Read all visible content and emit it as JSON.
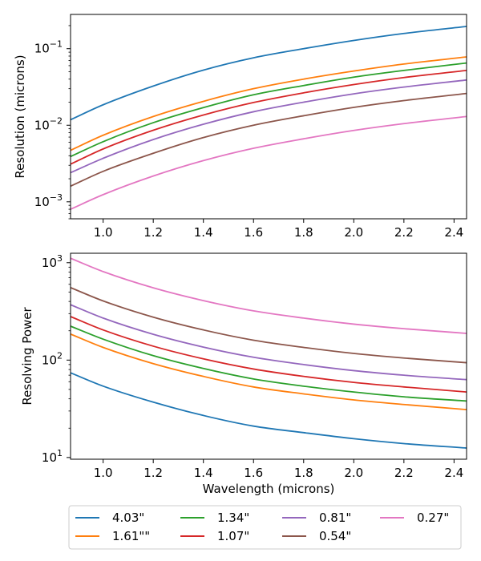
{
  "chart_data": [
    {
      "type": "line",
      "yscale": "log",
      "title": "",
      "xlabel": "",
      "ylabel": "Resolution (microns)",
      "xlim": [
        0.87,
        2.45
      ],
      "ylim": [
        0.0006,
        0.28
      ],
      "x": [
        0.87,
        1.0,
        1.2,
        1.4,
        1.6,
        1.8,
        2.0,
        2.2,
        2.45
      ],
      "xticks": [
        1.0,
        1.2,
        1.4,
        1.6,
        1.8,
        2.0,
        2.2,
        2.4
      ],
      "xtick_labels": [
        "1.0",
        "1.2",
        "1.4",
        "1.6",
        "1.8",
        "2.0",
        "2.2",
        "2.4"
      ],
      "yticks": [
        0.001,
        0.01,
        0.1
      ],
      "ytick_labels": [
        {
          "base": "10",
          "exp": "−3"
        },
        {
          "base": "10",
          "exp": "−2"
        },
        {
          "base": "10",
          "exp": "−1"
        }
      ],
      "series": [
        {
          "name": "4.03\"",
          "color": "#1f77b4",
          "values": [
            0.0118,
            0.0185,
            0.0325,
            0.0525,
            0.076,
            0.1,
            0.128,
            0.158,
            0.195
          ]
        },
        {
          "name": "1.61\"\"",
          "color": "#ff7f0e",
          "values": [
            0.0047,
            0.0074,
            0.013,
            0.0205,
            0.03,
            0.04,
            0.051,
            0.063,
            0.078
          ]
        },
        {
          "name": "1.34\"",
          "color": "#2ca02c",
          "values": [
            0.0039,
            0.0061,
            0.0108,
            0.017,
            0.025,
            0.033,
            0.0425,
            0.052,
            0.065
          ]
        },
        {
          "name": "1.07\"",
          "color": "#d62728",
          "values": [
            0.0031,
            0.0049,
            0.0086,
            0.0136,
            0.0198,
            0.0265,
            0.034,
            0.042,
            0.052
          ]
        },
        {
          "name": "0.81\"",
          "color": "#9467bd",
          "values": [
            0.0024,
            0.0037,
            0.0065,
            0.0103,
            0.015,
            0.02,
            0.0257,
            0.0315,
            0.039
          ]
        },
        {
          "name": "0.54\"",
          "color": "#8c564b",
          "values": [
            0.0016,
            0.0025,
            0.0043,
            0.0069,
            0.01,
            0.0133,
            0.0171,
            0.021,
            0.026
          ]
        },
        {
          "name": "0.27\"",
          "color": "#e377c2",
          "values": [
            0.0008,
            0.00124,
            0.00217,
            0.00345,
            0.005,
            0.00665,
            0.00855,
            0.0105,
            0.013
          ]
        }
      ]
    },
    {
      "type": "line",
      "yscale": "log",
      "title": "",
      "xlabel": "Wavelength (microns)",
      "ylabel": "Resolving Power",
      "xlim": [
        0.87,
        2.45
      ],
      "ylim": [
        9.6,
        1250
      ],
      "x": [
        0.87,
        1.0,
        1.2,
        1.4,
        1.6,
        1.8,
        2.0,
        2.2,
        2.45
      ],
      "xticks": [
        1.0,
        1.2,
        1.4,
        1.6,
        1.8,
        2.0,
        2.2,
        2.4
      ],
      "xtick_labels": [
        "1.0",
        "1.2",
        "1.4",
        "1.6",
        "1.8",
        "2.0",
        "2.2",
        "2.4"
      ],
      "yticks": [
        10,
        100,
        1000
      ],
      "ytick_labels": [
        {
          "base": "10",
          "exp": "1"
        },
        {
          "base": "10",
          "exp": "2"
        },
        {
          "base": "10",
          "exp": "3"
        }
      ],
      "series": [
        {
          "name": "4.03\"",
          "color": "#1f77b4",
          "values": [
            74,
            54,
            37,
            27,
            21,
            18,
            15.6,
            13.9,
            12.5
          ]
        },
        {
          "name": "1.61\"\"",
          "color": "#ff7f0e",
          "values": [
            185,
            135,
            92,
            68,
            53,
            45,
            39,
            35,
            31
          ]
        },
        {
          "name": "1.34\"",
          "color": "#2ca02c",
          "values": [
            223,
            164,
            111,
            82,
            64,
            54,
            47,
            42,
            38
          ]
        },
        {
          "name": "1.07\"",
          "color": "#d62728",
          "values": [
            280,
            204,
            139,
            103,
            81,
            68,
            59,
            53,
            47
          ]
        },
        {
          "name": "0.81\"",
          "color": "#9467bd",
          "values": [
            370,
            270,
            184,
            136,
            107,
            90,
            78,
            70,
            63
          ]
        },
        {
          "name": "0.54\"",
          "color": "#8c564b",
          "values": [
            555,
            405,
            276,
            204,
            160,
            135,
            117,
            105,
            94
          ]
        },
        {
          "name": "0.27\"",
          "color": "#e377c2",
          "values": [
            1110,
            810,
            552,
            408,
            320,
            270,
            234,
            210,
            188
          ]
        }
      ]
    }
  ],
  "legend": {
    "placement": "bottom-center",
    "columns": 4,
    "entries": [
      "4.03\"",
      "1.61\"\"",
      "1.34\"",
      "1.07\"",
      "0.81\"",
      "0.54\"",
      "0.27\""
    ]
  }
}
